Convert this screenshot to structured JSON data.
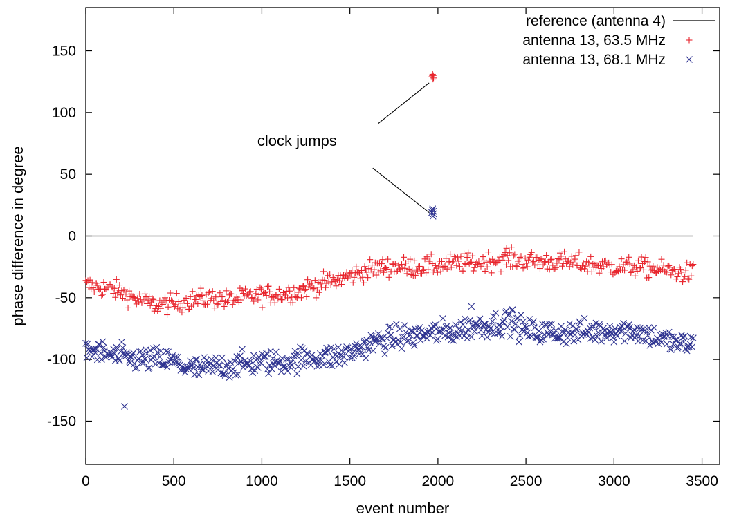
{
  "chart_data": {
    "type": "scatter",
    "xlabel": "event number",
    "ylabel": "phase difference in degree",
    "xlim": [
      0,
      3600
    ],
    "ylim": [
      -185,
      185
    ],
    "xticks": [
      0,
      500,
      1000,
      1500,
      2000,
      2500,
      3000,
      3500
    ],
    "yticks": [
      -150,
      -100,
      -50,
      0,
      50,
      100,
      150
    ],
    "xtick_labels": [
      "0",
      "500",
      "1000",
      "1500",
      "2000",
      "2500",
      "3000",
      "3500"
    ],
    "ytick_labels": [
      "-150",
      "-100",
      "-50",
      "0",
      "50",
      "100",
      "150"
    ],
    "grid": false,
    "legend_position": "top-right",
    "series": [
      {
        "name": "reference (antenna 4)",
        "kind": "line",
        "color": "#000000",
        "x": [
          0,
          3450
        ],
        "y": [
          0,
          0
        ]
      },
      {
        "name": "antenna 13, 63.5 MHz",
        "kind": "points",
        "marker": "plus",
        "color": "#e8252d",
        "trend_x": [
          0,
          100,
          200,
          300,
          400,
          500,
          600,
          700,
          800,
          900,
          1000,
          1100,
          1200,
          1300,
          1400,
          1500,
          1600,
          1700,
          1800,
          1900,
          2000,
          2100,
          2200,
          2300,
          2400,
          2500,
          2600,
          2700,
          2800,
          2900,
          3000,
          3100,
          3200,
          3300,
          3400,
          3450
        ],
        "trend_y": [
          -40,
          -42,
          -45,
          -52,
          -56,
          -55,
          -52,
          -50,
          -52,
          -50,
          -48,
          -47,
          -45,
          -40,
          -37,
          -32,
          -28,
          -25,
          -25,
          -25,
          -24,
          -22,
          -22,
          -20,
          -19,
          -20,
          -21,
          -21,
          -22,
          -24,
          -25,
          -25,
          -26,
          -28,
          -30,
          -30
        ],
        "spread": 4,
        "outliers": [
          {
            "x": 1970,
            "y": 131
          },
          {
            "x": 1965,
            "y": 129
          },
          {
            "x": 1975,
            "y": 128
          },
          {
            "x": 1968,
            "y": 130
          },
          {
            "x": 1972,
            "y": 127
          },
          {
            "x": 1974,
            "y": 130
          },
          {
            "x": 2390,
            "y": -10
          }
        ]
      },
      {
        "name": "antenna 13, 68.1 MHz",
        "kind": "points",
        "marker": "cross",
        "color": "#2d3290",
        "trend_x": [
          0,
          100,
          200,
          300,
          400,
          500,
          600,
          700,
          800,
          900,
          1000,
          1100,
          1200,
          1300,
          1400,
          1500,
          1600,
          1700,
          1800,
          1900,
          2000,
          2100,
          2200,
          2300,
          2400,
          2500,
          2600,
          2700,
          2800,
          2900,
          3000,
          3100,
          3200,
          3300,
          3400,
          3450
        ],
        "trend_y": [
          -92,
          -95,
          -98,
          -100,
          -100,
          -102,
          -108,
          -107,
          -105,
          -104,
          -102,
          -102,
          -100,
          -98,
          -98,
          -95,
          -88,
          -84,
          -82,
          -80,
          -78,
          -77,
          -73,
          -72,
          -68,
          -77,
          -78,
          -78,
          -78,
          -77,
          -76,
          -76,
          -80,
          -85,
          -88,
          -88
        ],
        "spread": 5,
        "outliers": [
          {
            "x": 1970,
            "y": 22
          },
          {
            "x": 1965,
            "y": 19
          },
          {
            "x": 1975,
            "y": 18
          },
          {
            "x": 1968,
            "y": 21
          },
          {
            "x": 1972,
            "y": 16
          },
          {
            "x": 1974,
            "y": 20
          },
          {
            "x": 220,
            "y": -138
          },
          {
            "x": 2190,
            "y": -57
          },
          {
            "x": 2420,
            "y": -60
          }
        ]
      }
    ],
    "annotations": [
      {
        "text": "clock jumps",
        "text_x": 1200,
        "text_y": 73,
        "arrows": [
          {
            "from_x": 1660,
            "from_y": 91,
            "to_x": 1950,
            "to_y": 124
          },
          {
            "from_x": 1630,
            "from_y": 55,
            "to_x": 1950,
            "to_y": 19
          }
        ]
      }
    ]
  }
}
